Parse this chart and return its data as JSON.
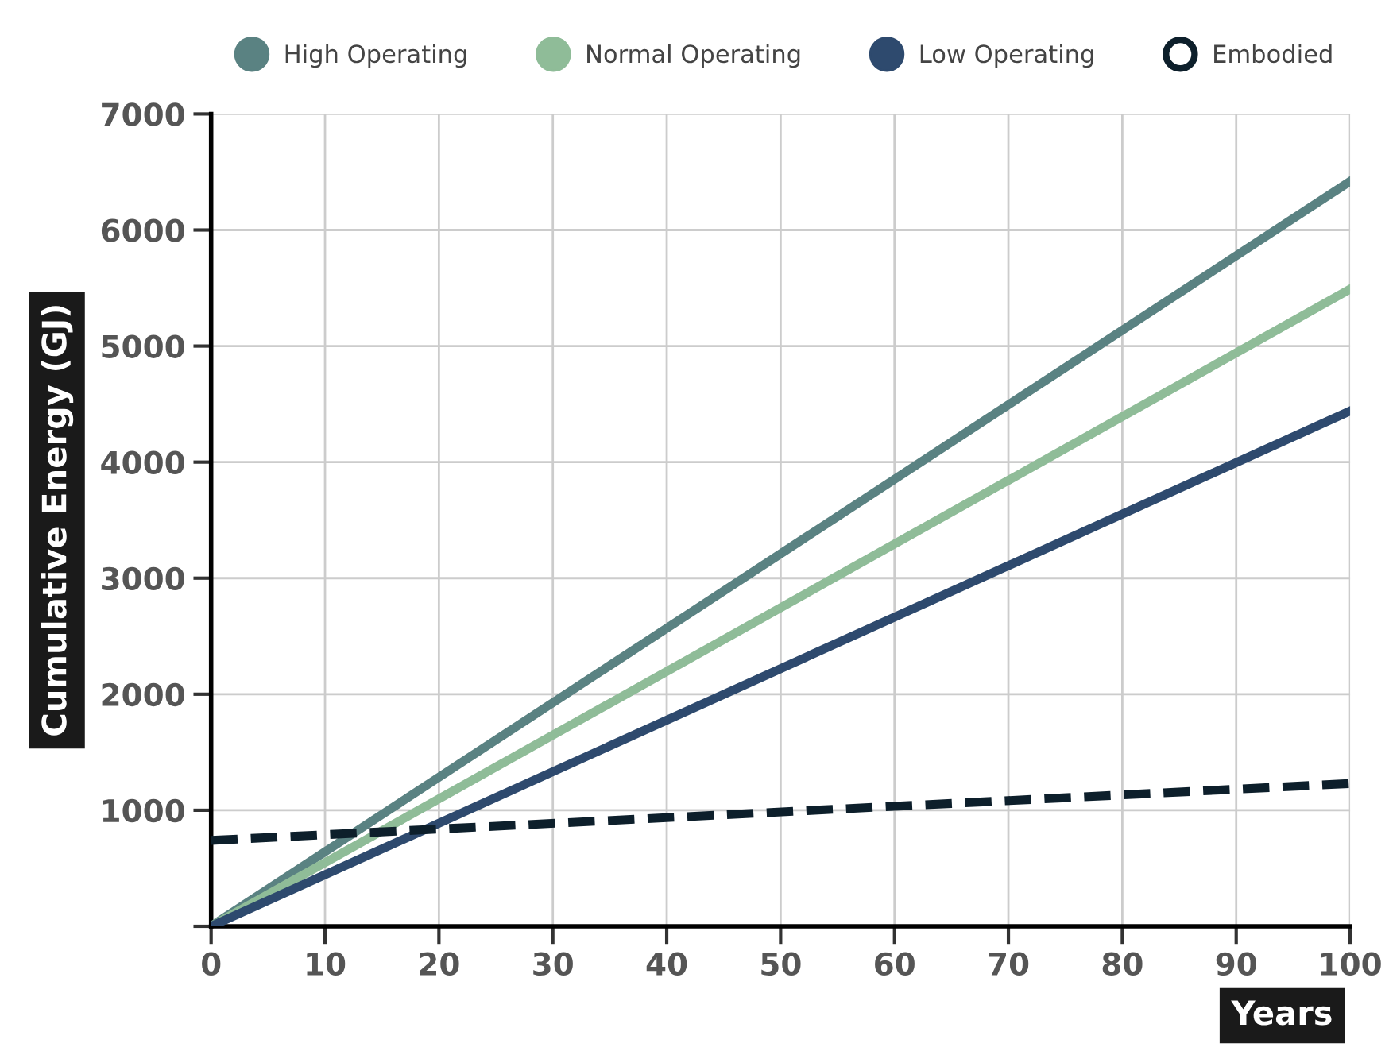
{
  "chart_data": {
    "type": "line",
    "xlabel": "Years",
    "ylabel": "Cumulative Energy (GJ)",
    "x": [
      0,
      100
    ],
    "series": [
      {
        "name": "High Operating",
        "color": "#5a8282",
        "values": [
          0,
          6420
        ]
      },
      {
        "name": "Normal Operating",
        "color": "#8fbc98",
        "values": [
          0,
          5490
        ]
      },
      {
        "name": "Low Operating",
        "color": "#2e4a6e",
        "values": [
          0,
          4440
        ]
      },
      {
        "name": "Embodied",
        "color": "#0d1f2b",
        "values": [
          740,
          1230
        ],
        "line_style": "dashed"
      }
    ],
    "xlim": [
      0,
      100
    ],
    "xticks": [
      0,
      10,
      20,
      30,
      40,
      50,
      60,
      70,
      80,
      90,
      100
    ],
    "ylim": [
      0,
      7000
    ],
    "yticks": [
      {
        "value": 0,
        "label": null
      },
      1000,
      2000,
      3000,
      4000,
      5000,
      6000,
      7000
    ],
    "grid": true,
    "legend": "top",
    "marker": "none",
    "line_style": "solid"
  }
}
